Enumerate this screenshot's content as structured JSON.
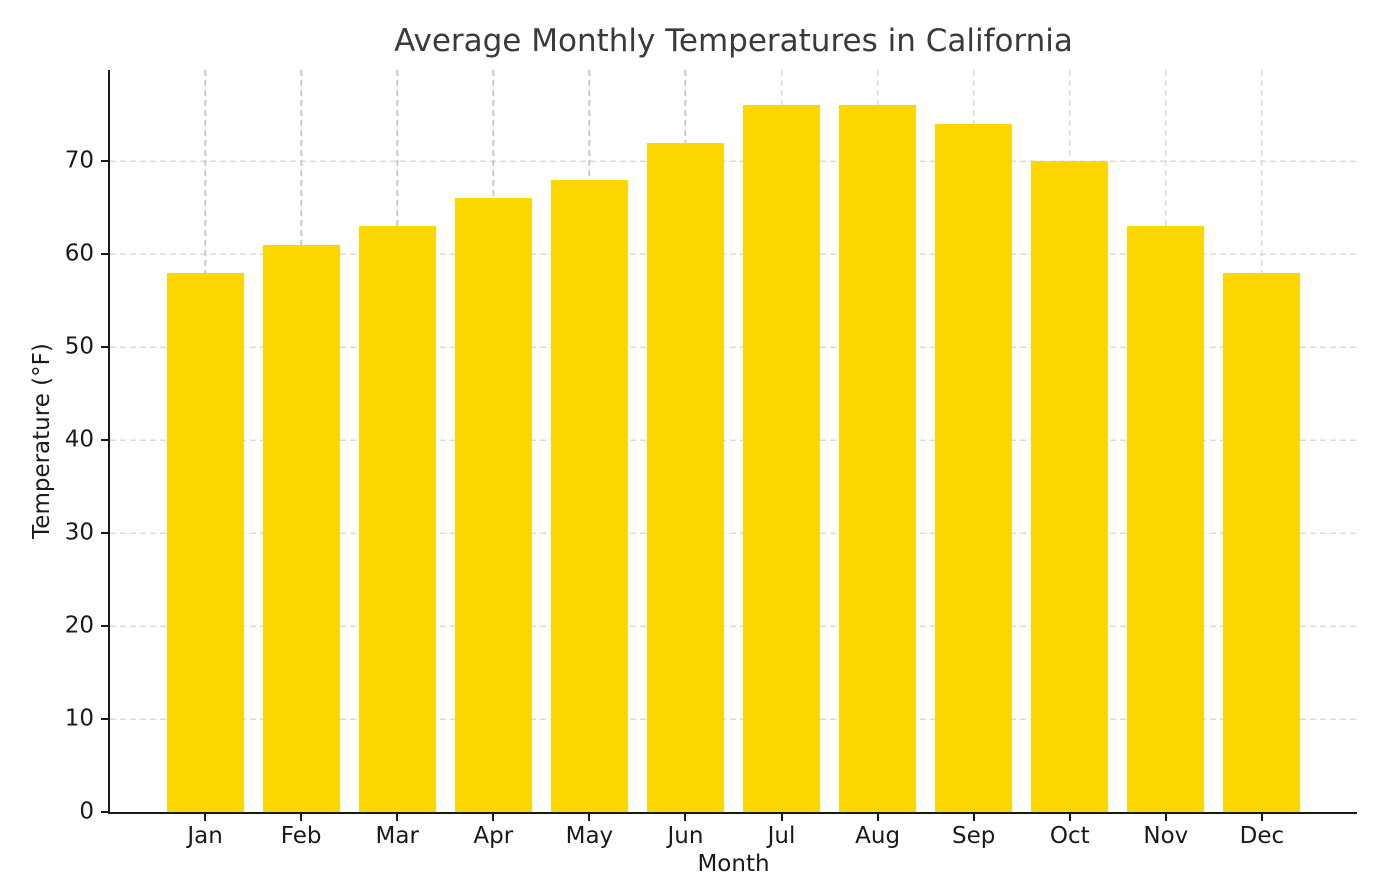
{
  "chart_data": {
    "type": "bar",
    "title": "Average Monthly Temperatures in California",
    "xlabel": "Month",
    "ylabel": "Temperature (°F)",
    "categories": [
      "Jan",
      "Feb",
      "Mar",
      "Apr",
      "May",
      "Jun",
      "Jul",
      "Aug",
      "Sep",
      "Oct",
      "Nov",
      "Dec"
    ],
    "values": [
      58,
      61,
      63,
      66,
      68,
      72,
      76,
      76,
      74,
      70,
      63,
      58
    ],
    "yticks": [
      0,
      10,
      20,
      30,
      40,
      50,
      60,
      70
    ],
    "ylim": [
      0,
      79.8
    ],
    "xlim": [
      -0.99,
      11.99
    ],
    "bar_width": 0.8,
    "grid": "dashed, horizontal and vertical, behind bars",
    "legend": "none",
    "style": {
      "bar_color": "#FFD700",
      "grid_color": "#c9c9c9",
      "spine_color": "#1a1a1a",
      "tick_label_color": "#1a1a1a",
      "title_color": "#3a3a3a",
      "background_color": "#ffffff"
    }
  }
}
